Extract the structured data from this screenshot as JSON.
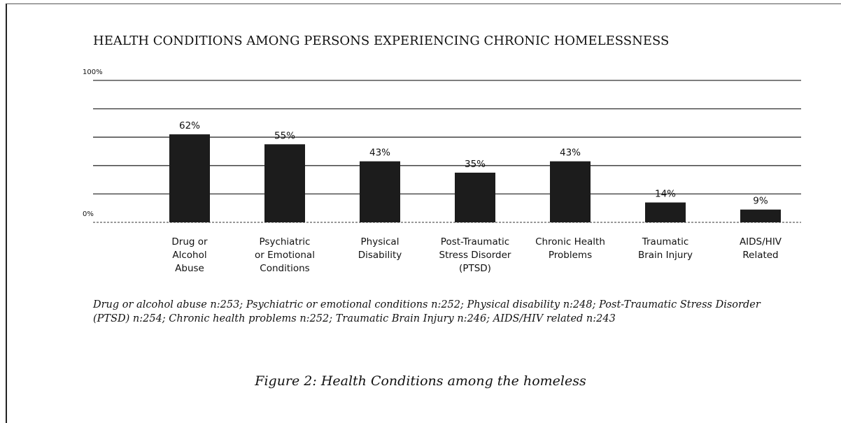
{
  "chart_data": {
    "type": "bar",
    "title": "HEALTH CONDITIONS AMONG PERSONS EXPERIENCING CHRONIC HOMELESSNESS",
    "categories": [
      "Drug or\nAlcohol\nAbuse",
      "Psychiatric\nor Emotional\nConditions",
      "Physical\nDisability",
      "Post-Traumatic\nStress Disorder\n(PTSD)",
      "Chronic Health\nProblems",
      "Traumatic\nBrain Injury",
      "AIDS/HIV\nRelated"
    ],
    "values": [
      62,
      55,
      43,
      35,
      43,
      14,
      9
    ],
    "value_labels": [
      "62%",
      "55%",
      "43%",
      "35%",
      "43%",
      "14%",
      "9%"
    ],
    "color": "#1c1c1c",
    "ylim": [
      0,
      100
    ],
    "yticks": [
      {
        "value": 0,
        "label": "0%"
      },
      {
        "value": 20,
        "label": null
      },
      {
        "value": 40,
        "label": null
      },
      {
        "value": 60,
        "label": null
      },
      {
        "value": 80,
        "label": null
      },
      {
        "value": 100,
        "label": "100%"
      }
    ],
    "grid": true,
    "note": "Drug or alcohol abuse n:253; Psychiatric or emotional conditions n:252; Physical disability n:248; Post-Traumatic Stress Disorder (PTSD) n:254; Chronic health problems n:252; Traumatic Brain Injury n:246; AIDS/HIV related n:243",
    "caption": "Figure 2:  Health Conditions among the homeless"
  }
}
